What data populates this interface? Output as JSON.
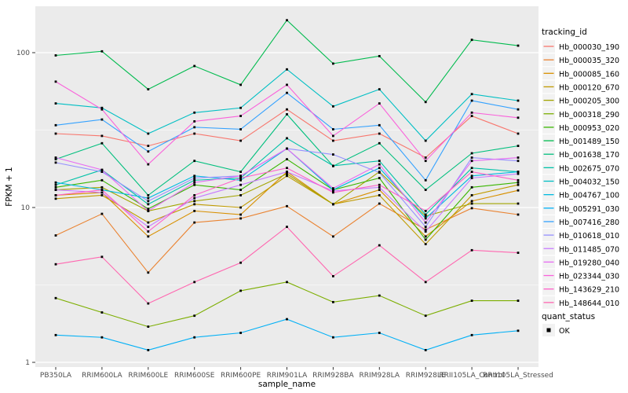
{
  "figure": {
    "background": "#FFFFFF",
    "panel_background": "#EBEBEB",
    "gridline_color": "#FFFFFF",
    "tick_color": "#333333",
    "tick_label_color": "#4D4D4D",
    "text_color": "#000000",
    "point_color": "#000000"
  },
  "chart_data": {
    "type": "line",
    "title": "",
    "xlabel": "sample_name",
    "ylabel": "FPKM + 1",
    "y_scale": "log10",
    "ylim": [
      0.94,
      200
    ],
    "y_ticks": [
      1,
      10,
      100
    ],
    "y_minor_gridlines": [
      3.162,
      31.62
    ],
    "grid": "major and minor white gridlines on grey panel",
    "legend_position": "right",
    "marker": "small black square (quant_status OK)",
    "categories": [
      "PB350LA",
      "RRIM600LA",
      "RRIM600LE",
      "RRIM600SE",
      "RRIM600PE",
      "RRIM901LA",
      "RRIM928BA",
      "RRIM928LA",
      "RRIM928LE",
      "RRII105LA_Control",
      "RRII105LA_Stressed"
    ],
    "series": [
      {
        "name": "Hb_000030_190",
        "color": "#F8766D",
        "values": [
          30,
          29,
          25,
          30,
          27,
          43,
          27,
          30,
          21,
          39,
          30
        ]
      },
      {
        "name": "Hb_000035_320",
        "color": "#EA8331",
        "values": [
          6.6,
          9.1,
          3.8,
          8.0,
          8.5,
          10.2,
          6.5,
          10.6,
          7.2,
          9.9,
          9.0
        ]
      },
      {
        "name": "Hb_000085_160",
        "color": "#D89000",
        "values": [
          12,
          12.5,
          6.5,
          9.5,
          9,
          17,
          10.5,
          13,
          6.5,
          11,
          12.9
        ]
      },
      {
        "name": "Hb_000120_670",
        "color": "#C09B00",
        "values": [
          11.4,
          12,
          8,
          10.5,
          10,
          16,
          10.5,
          12,
          5.8,
          12,
          14
        ]
      },
      {
        "name": "Hb_000205_300",
        "color": "#A3A500",
        "values": [
          13,
          13.5,
          9.5,
          11,
          12,
          16.5,
          10.5,
          17,
          8.8,
          10.6,
          10.6
        ]
      },
      {
        "name": "Hb_000318_290",
        "color": "#7CAE00",
        "values": [
          2.6,
          2.1,
          1.7,
          2.0,
          2.9,
          3.3,
          2.45,
          2.7,
          2.0,
          2.5,
          2.5
        ]
      },
      {
        "name": "Hb_000953_020",
        "color": "#39B600",
        "values": [
          13.5,
          15,
          9.8,
          14,
          13,
          20.5,
          13,
          15.5,
          6.2,
          13.5,
          14.5
        ]
      },
      {
        "name": "Hb_001489_150",
        "color": "#00BB4E",
        "values": [
          96,
          102,
          58,
          82,
          62,
          162,
          85,
          95,
          48,
          121,
          111
        ]
      },
      {
        "name": "Hb_001638_170",
        "color": "#00BF7D",
        "values": [
          20.5,
          26,
          12,
          20,
          17,
          40,
          18.5,
          26,
          13,
          22.4,
          25
        ]
      },
      {
        "name": "Hb_002675_070",
        "color": "#00C1A7",
        "values": [
          14,
          17.5,
          10.5,
          15,
          15.5,
          28,
          18.6,
          20,
          9,
          18,
          17
        ]
      },
      {
        "name": "Hb_004032_150",
        "color": "#00BFC4",
        "values": [
          47,
          44,
          30,
          41,
          44,
          78,
          45,
          58,
          27,
          54,
          49
        ]
      },
      {
        "name": "Hb_004767_100",
        "color": "#00BAE0",
        "values": [
          14.5,
          13,
          11.5,
          16,
          15,
          24,
          13,
          18,
          8.5,
          16,
          17
        ]
      },
      {
        "name": "Hb_005291_030",
        "color": "#00B0F6",
        "values": [
          1.5,
          1.45,
          1.2,
          1.45,
          1.55,
          1.9,
          1.45,
          1.55,
          1.2,
          1.5,
          1.6
        ]
      },
      {
        "name": "Hb_007416_280",
        "color": "#35A2FF",
        "values": [
          34,
          37,
          23,
          33,
          32,
          55,
          32,
          34,
          15,
          49,
          43
        ]
      },
      {
        "name": "Hb_010618_010",
        "color": "#9590FF",
        "values": [
          19.5,
          17,
          11,
          15.5,
          16,
          24,
          22,
          16.8,
          7.5,
          21,
          20
        ]
      },
      {
        "name": "Hb_011485_070",
        "color": "#C77CFF",
        "values": [
          13,
          12.5,
          7.5,
          11.5,
          14,
          17,
          12.8,
          13.5,
          7,
          15.5,
          16.5
        ]
      },
      {
        "name": "Hb_019280_040",
        "color": "#E76BF3",
        "values": [
          21,
          17.5,
          9.5,
          14.5,
          16,
          24,
          13.3,
          19,
          8,
          20,
          21
        ]
      },
      {
        "name": "Hb_023344_030",
        "color": "#FA62DB",
        "values": [
          65,
          43,
          19,
          36,
          39,
          62,
          29,
          47,
          20,
          41,
          38
        ]
      },
      {
        "name": "Hb_143629_210",
        "color": "#FF61C9",
        "values": [
          12,
          13,
          7,
          12,
          15.5,
          18,
          12.5,
          14,
          9.5,
          17,
          15
        ]
      },
      {
        "name": "Hb_148644_010",
        "color": "#FF67B0",
        "values": [
          4.3,
          4.8,
          2.4,
          3.3,
          4.4,
          7.5,
          3.6,
          5.7,
          3.3,
          5.3,
          5.1
        ]
      }
    ]
  },
  "legend": {
    "tracking_title": "tracking_id",
    "quant_title": "quant_status",
    "quant_status_label": "OK",
    "quant_marker_color": "#000000",
    "key_background": "#F2F2F2"
  }
}
